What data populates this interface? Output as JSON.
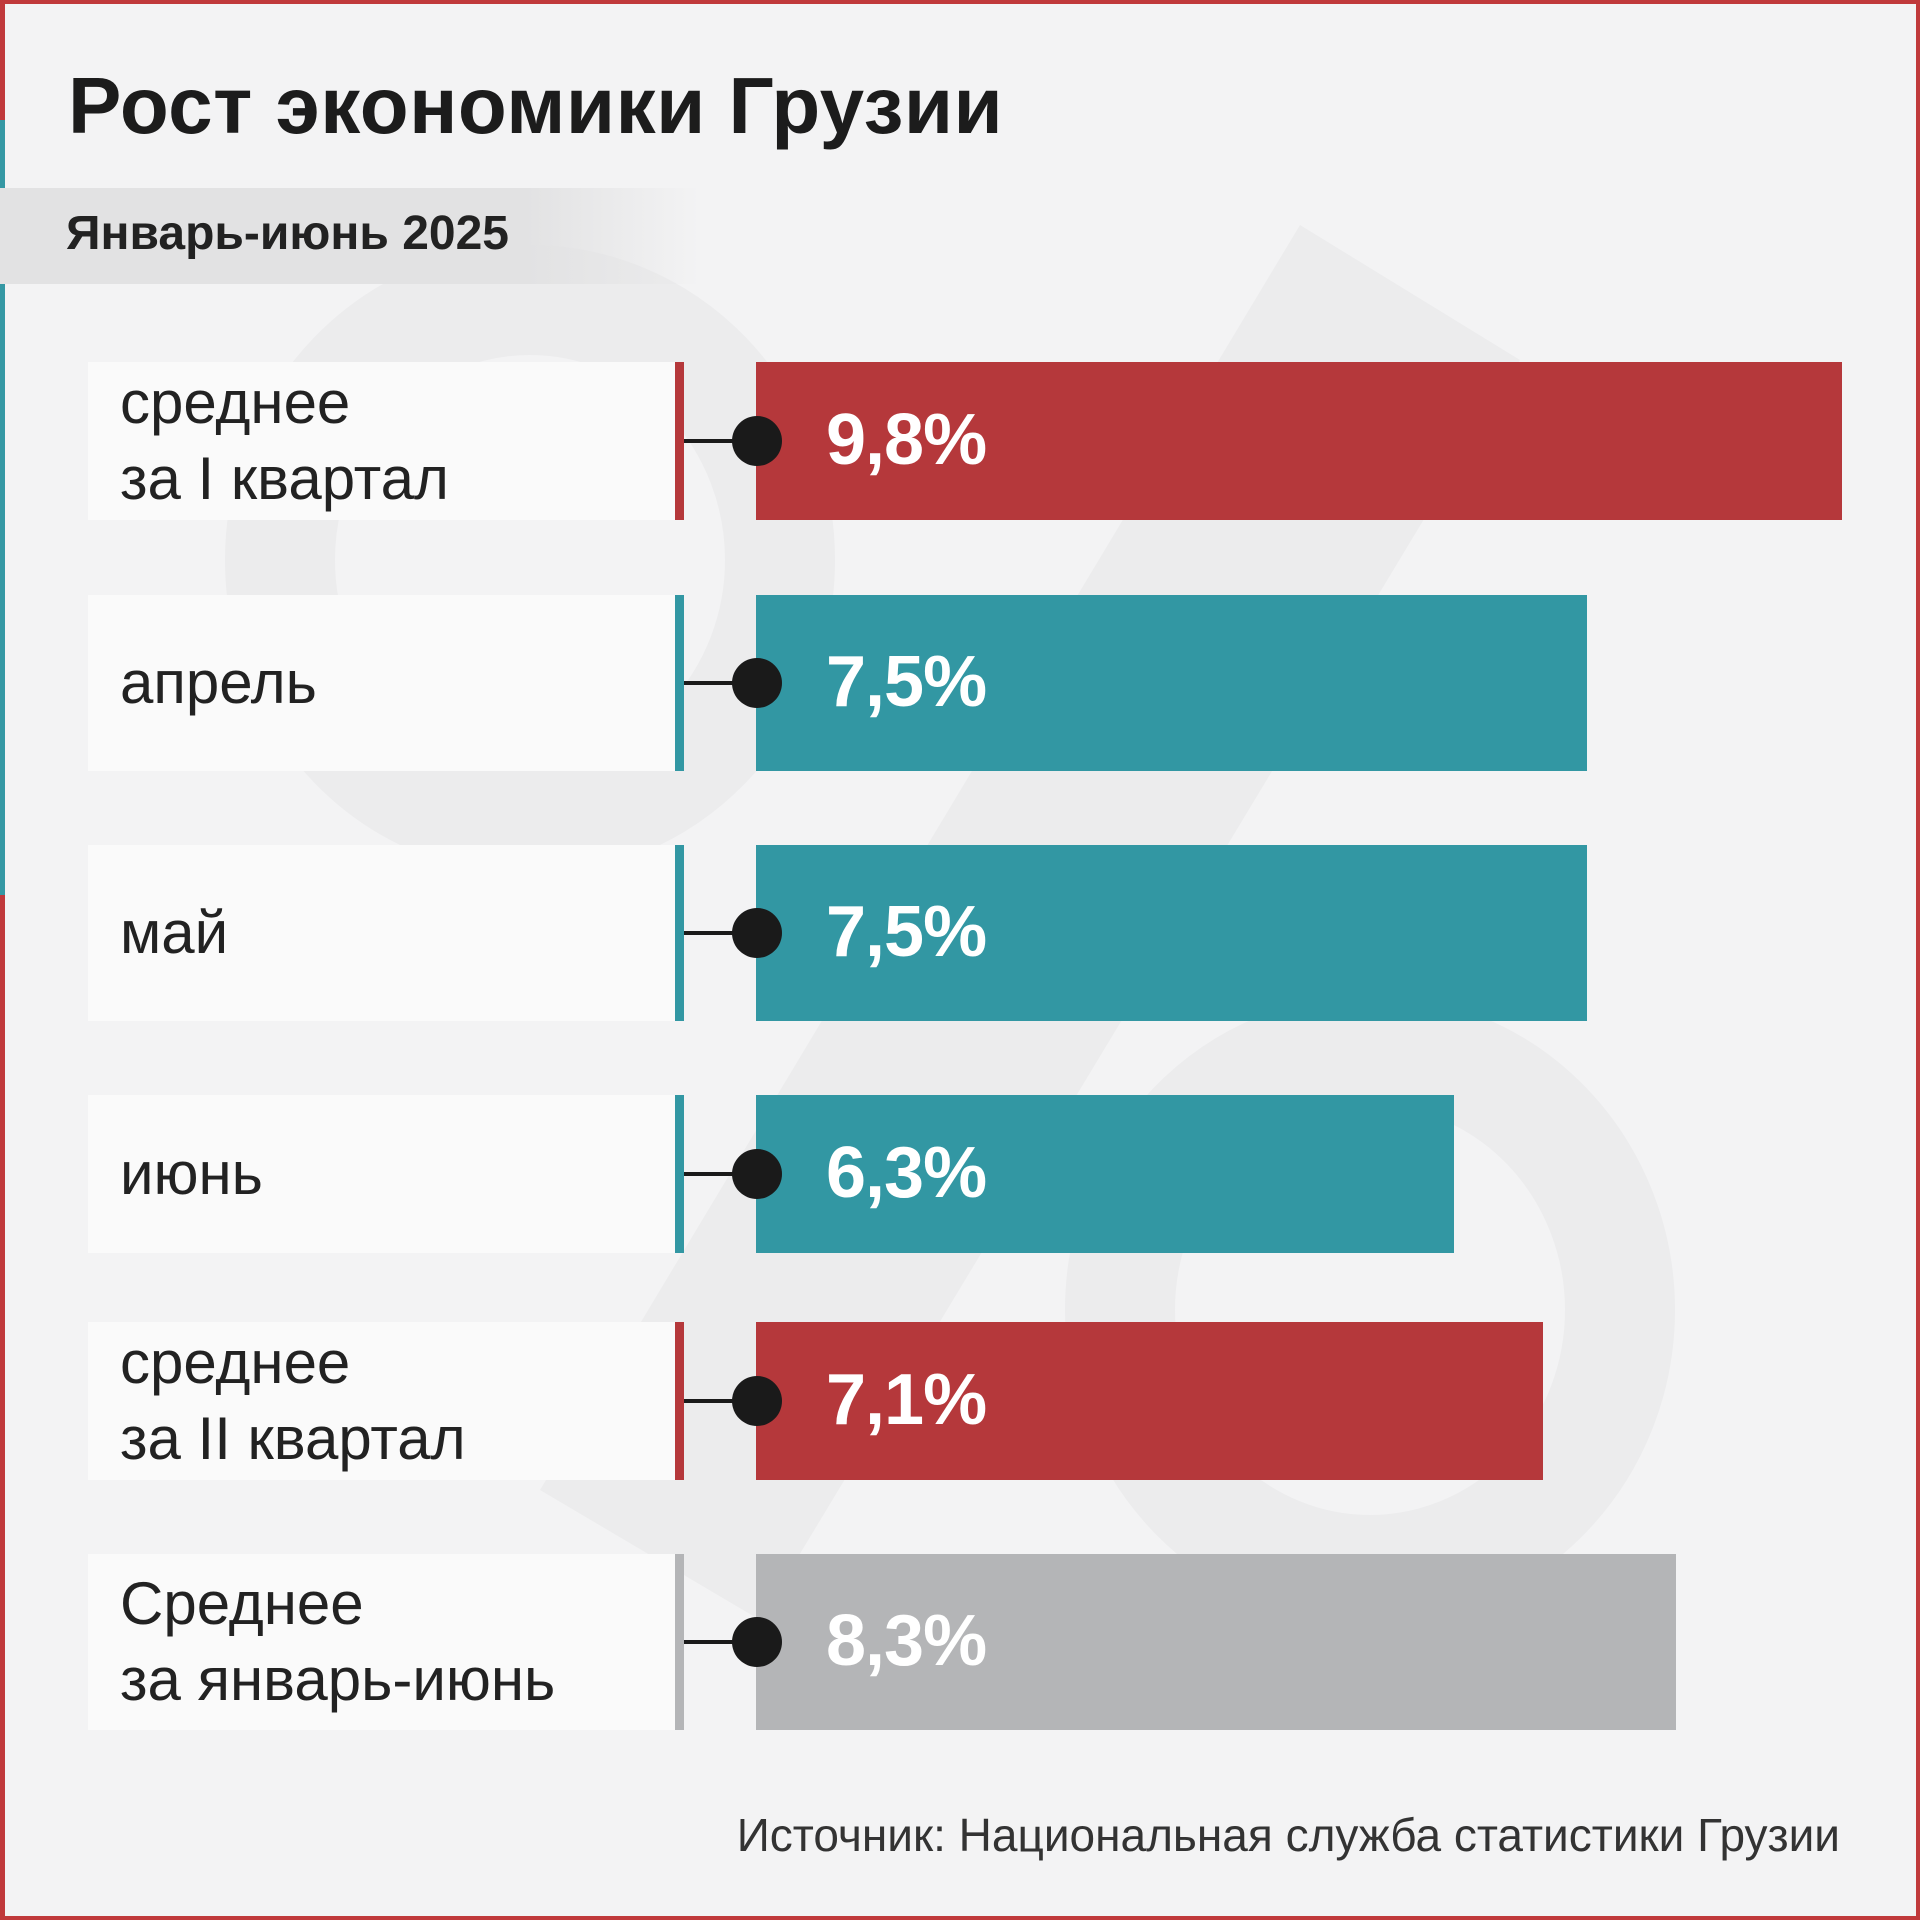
{
  "header": {
    "title": "Рост экономики Грузии",
    "subtitle": "Январь-июнь 2025"
  },
  "colors": {
    "quarter": "#b5383b",
    "month": "#3297a3",
    "total": "#b4b5b7",
    "frame": "#c0393b"
  },
  "chart_data": {
    "type": "bar",
    "orientation": "horizontal",
    "title": "Рост экономики Грузии",
    "subtitle": "Январь-июнь 2025",
    "categories": [
      "среднее\nза I квартал",
      "апрель",
      "май",
      "июнь",
      "среднее\nза II квартал",
      "Среднее\nза январь-июнь"
    ],
    "values": [
      9.8,
      7.5,
      7.5,
      6.3,
      7.1,
      8.3
    ],
    "value_labels": [
      "9,8%",
      "7,5%",
      "7,5%",
      "6,3%",
      "7,1%",
      "8,3%"
    ],
    "kinds": [
      "quarter",
      "month",
      "month",
      "month",
      "quarter",
      "total"
    ],
    "xlim": [
      0,
      9.8
    ]
  },
  "footer": {
    "source": "Источник: Национальная служба статистики Грузии"
  }
}
